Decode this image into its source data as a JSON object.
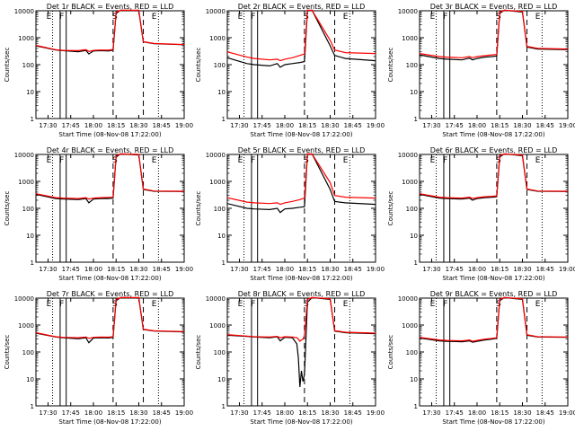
{
  "chart_data": [
    {
      "type": "line",
      "title": "Det 1r BLACK = Events, RED = LLD",
      "xlabel": "Start Time (08-Nov-08 17:22:00)",
      "ylabel": "Counts/sec",
      "xlim_minutes": [
        17.3667,
        18.2
      ],
      "ylim": [
        1,
        10000
      ],
      "yscale": "log",
      "x_ticks": [
        "17:30",
        "17:45",
        "18:00",
        "18:15",
        "18:30",
        "18:45",
        "19:00"
      ],
      "y_ticks": [
        "1",
        "10",
        "100",
        "1000",
        "10000"
      ],
      "markers": [
        "E",
        "F",
        "S",
        "E"
      ],
      "series": [
        {
          "name": "BLACK = Events",
          "color": "#000000",
          "x": [
            "17:22",
            "17:35",
            "17:40",
            "17:50",
            "17:55",
            "17:57",
            "18:00",
            "18:05",
            "18:10",
            "18:13",
            "18:15",
            "18:18",
            "18:30",
            "18:33",
            "18:40",
            "19:00"
          ],
          "y": [
            500,
            350,
            330,
            300,
            340,
            250,
            320,
            330,
            320,
            350,
            8000,
            12000,
            10000,
            700,
            600,
            550
          ]
        },
        {
          "name": "RED = LLD",
          "color": "#ff0000",
          "x": [
            "17:22",
            "17:35",
            "17:40",
            "17:50",
            "17:55",
            "17:57",
            "18:00",
            "18:05",
            "18:10",
            "18:13",
            "18:15",
            "18:18",
            "18:30",
            "18:33",
            "18:40",
            "19:00"
          ],
          "y": [
            520,
            360,
            340,
            330,
            360,
            310,
            340,
            350,
            345,
            370,
            9000,
            12500,
            10500,
            720,
            610,
            560
          ]
        }
      ]
    },
    {
      "type": "line",
      "title": "Det 2r BLACK = Events, RED = LLD",
      "xlabel": "Start Time (08-Nov-08 17:22:00)",
      "ylabel": "Counts/sec",
      "xlim_minutes": [
        17.3667,
        18.2
      ],
      "ylim": [
        1,
        10000
      ],
      "yscale": "log",
      "x_ticks": [
        "17:30",
        "17:45",
        "18:00",
        "18:15",
        "18:30",
        "18:45",
        "19:00"
      ],
      "y_ticks": [
        "1",
        "10",
        "100",
        "1000",
        "10000"
      ],
      "markers": [
        "E",
        "F",
        "S",
        "E"
      ],
      "series": [
        {
          "name": "BLACK = Events",
          "color": "#000000",
          "x": [
            "17:22",
            "17:35",
            "17:40",
            "17:50",
            "17:55",
            "17:57",
            "18:00",
            "18:05",
            "18:10",
            "18:13",
            "18:15",
            "18:18",
            "18:30",
            "18:33",
            "18:40",
            "19:00"
          ],
          "y": [
            180,
            110,
            100,
            90,
            110,
            80,
            100,
            110,
            120,
            130,
            10000,
            12000,
            500,
            220,
            170,
            140
          ]
        },
        {
          "name": "RED = LLD",
          "color": "#ff0000",
          "x": [
            "17:22",
            "17:35",
            "17:40",
            "17:50",
            "17:55",
            "17:57",
            "18:00",
            "18:05",
            "18:10",
            "18:13",
            "18:15",
            "18:18",
            "18:30",
            "18:33",
            "18:40",
            "19:00"
          ],
          "y": [
            300,
            190,
            170,
            150,
            160,
            140,
            160,
            180,
            220,
            250,
            11000,
            12500,
            800,
            350,
            280,
            260
          ]
        }
      ]
    },
    {
      "type": "line",
      "title": "Det 3r BLACK = Events, RED = LLD",
      "xlabel": "Start Time (08-Nov-08 17:22:00)",
      "ylabel": "Counts/sec",
      "xlim_minutes": [
        17.3667,
        18.2
      ],
      "ylim": [
        1,
        10000
      ],
      "yscale": "log",
      "x_ticks": [
        "17:30",
        "17:45",
        "18:00",
        "18:15",
        "18:30",
        "18:45",
        "19:00"
      ],
      "y_ticks": [
        "1",
        "10",
        "100",
        "1000",
        "10000"
      ],
      "markers": [
        "E",
        "F",
        "S",
        "E"
      ],
      "series": [
        {
          "name": "BLACK = Events",
          "color": "#000000",
          "x": [
            "17:22",
            "17:35",
            "17:40",
            "17:50",
            "17:55",
            "17:57",
            "18:00",
            "18:05",
            "18:10",
            "18:13",
            "18:15",
            "18:18",
            "18:30",
            "18:33",
            "18:40",
            "19:00"
          ],
          "y": [
            230,
            170,
            160,
            150,
            175,
            150,
            170,
            190,
            200,
            210,
            8000,
            12000,
            9000,
            450,
            380,
            360
          ]
        },
        {
          "name": "RED = LLD",
          "color": "#ff0000",
          "x": [
            "17:22",
            "17:35",
            "17:40",
            "17:50",
            "17:55",
            "17:57",
            "18:00",
            "18:05",
            "18:10",
            "18:13",
            "18:15",
            "18:18",
            "18:30",
            "18:33",
            "18:40",
            "19:00"
          ],
          "y": [
            260,
            200,
            190,
            180,
            200,
            180,
            200,
            215,
            230,
            240,
            9000,
            12500,
            9500,
            480,
            400,
            380
          ]
        }
      ]
    },
    {
      "type": "line",
      "title": "Det 4r BLACK = Events, RED = LLD",
      "xlabel": "Start Time (08-Nov-08 17:22:00)",
      "ylabel": "Counts/sec",
      "xlim_minutes": [
        17.3667,
        18.2
      ],
      "ylim": [
        1,
        10000
      ],
      "yscale": "log",
      "x_ticks": [
        "17:30",
        "17:45",
        "18:00",
        "18:15",
        "18:30",
        "18:45",
        "19:00"
      ],
      "y_ticks": [
        "1",
        "10",
        "100",
        "1000",
        "10000"
      ],
      "markers": [
        "E",
        "F",
        "S",
        "E"
      ],
      "series": [
        {
          "name": "BLACK = Events",
          "color": "#000000",
          "x": [
            "17:22",
            "17:35",
            "17:40",
            "17:50",
            "17:55",
            "17:57",
            "18:00",
            "18:05",
            "18:10",
            "18:13",
            "18:15",
            "18:18",
            "18:30",
            "18:33",
            "18:40",
            "19:00"
          ],
          "y": [
            330,
            230,
            220,
            210,
            230,
            160,
            220,
            230,
            230,
            240,
            8000,
            12000,
            9500,
            500,
            430,
            420
          ]
        },
        {
          "name": "RED = LLD",
          "color": "#ff0000",
          "x": [
            "17:22",
            "17:35",
            "17:40",
            "17:50",
            "17:55",
            "17:57",
            "18:00",
            "18:05",
            "18:10",
            "18:13",
            "18:15",
            "18:18",
            "18:30",
            "18:33",
            "18:40",
            "19:00"
          ],
          "y": [
            350,
            250,
            240,
            230,
            250,
            220,
            240,
            250,
            255,
            260,
            9000,
            12500,
            10000,
            520,
            440,
            430
          ]
        }
      ]
    },
    {
      "type": "line",
      "title": "Det 5r BLACK = Events, RED = LLD",
      "xlabel": "Start Time (08-Nov-08 17:22:00)",
      "ylabel": "Counts/sec",
      "xlim_minutes": [
        17.3667,
        18.2
      ],
      "ylim": [
        1,
        10000
      ],
      "yscale": "log",
      "x_ticks": [
        "17:30",
        "17:45",
        "18:00",
        "18:15",
        "18:30",
        "18:45",
        "19:00"
      ],
      "y_ticks": [
        "1",
        "10",
        "100",
        "1000",
        "10000"
      ],
      "markers": [
        "E",
        "F",
        "S",
        "E"
      ],
      "series": [
        {
          "name": "BLACK = Events",
          "color": "#000000",
          "x": [
            "17:22",
            "17:35",
            "17:40",
            "17:50",
            "17:55",
            "17:57",
            "18:00",
            "18:05",
            "18:10",
            "18:13",
            "18:15",
            "18:18",
            "18:30",
            "18:33",
            "18:40",
            "19:00"
          ],
          "y": [
            150,
            100,
            95,
            90,
            100,
            70,
            95,
            100,
            110,
            115,
            10000,
            12000,
            500,
            180,
            160,
            140
          ]
        },
        {
          "name": "RED = LLD",
          "color": "#ff0000",
          "x": [
            "17:22",
            "17:35",
            "17:40",
            "17:50",
            "17:55",
            "17:57",
            "18:00",
            "18:05",
            "18:10",
            "18:13",
            "18:15",
            "18:18",
            "18:30",
            "18:33",
            "18:40",
            "19:00"
          ],
          "y": [
            250,
            170,
            160,
            150,
            160,
            140,
            160,
            180,
            210,
            240,
            11000,
            12500,
            900,
            300,
            260,
            240
          ]
        }
      ]
    },
    {
      "type": "line",
      "title": "Det 6r BLACK = Events, RED = LLD",
      "xlabel": "Start Time (08-Nov-08 17:22:00)",
      "ylabel": "Counts/sec",
      "xlim_minutes": [
        17.3667,
        18.2
      ],
      "ylim": [
        1,
        10000
      ],
      "yscale": "log",
      "x_ticks": [
        "17:30",
        "17:45",
        "18:00",
        "18:15",
        "18:30",
        "18:45",
        "19:00"
      ],
      "y_ticks": [
        "1",
        "10",
        "100",
        "1000",
        "10000"
      ],
      "markers": [
        "E",
        "F",
        "S",
        "E"
      ],
      "series": [
        {
          "name": "BLACK = Events",
          "color": "#000000",
          "x": [
            "17:22",
            "17:35",
            "17:40",
            "17:50",
            "17:55",
            "17:57",
            "18:00",
            "18:05",
            "18:10",
            "18:13",
            "18:15",
            "18:18",
            "18:30",
            "18:33",
            "18:40",
            "19:00"
          ],
          "y": [
            330,
            240,
            230,
            220,
            240,
            200,
            230,
            250,
            260,
            270,
            8000,
            12000,
            9000,
            500,
            430,
            420
          ]
        },
        {
          "name": "RED = LLD",
          "color": "#ff0000",
          "x": [
            "17:22",
            "17:35",
            "17:40",
            "17:50",
            "17:55",
            "17:57",
            "18:00",
            "18:05",
            "18:10",
            "18:13",
            "18:15",
            "18:18",
            "18:30",
            "18:33",
            "18:40",
            "19:00"
          ],
          "y": [
            350,
            260,
            250,
            240,
            260,
            230,
            250,
            270,
            280,
            290,
            9000,
            12500,
            9500,
            520,
            440,
            430
          ]
        }
      ]
    },
    {
      "type": "line",
      "title": "Det 7r BLACK = Events, RED = LLD",
      "xlabel": "Start Time (08-Nov-08 17:22:00)",
      "ylabel": "Counts/sec",
      "xlim_minutes": [
        17.3667,
        18.2
      ],
      "ylim": [
        1,
        10000
      ],
      "yscale": "log",
      "x_ticks": [
        "17:30",
        "17:45",
        "18:00",
        "18:15",
        "18:30",
        "18:45",
        "19:00"
      ],
      "y_ticks": [
        "1",
        "10",
        "100",
        "1000",
        "10000"
      ],
      "markers": [
        "E",
        "F",
        "S",
        "E"
      ],
      "series": [
        {
          "name": "BLACK = Events",
          "color": "#000000",
          "x": [
            "17:22",
            "17:35",
            "17:40",
            "17:50",
            "17:55",
            "17:57",
            "18:00",
            "18:05",
            "18:10",
            "18:13",
            "18:15",
            "18:18",
            "18:30",
            "18:33",
            "18:40",
            "19:00"
          ],
          "y": [
            500,
            360,
            340,
            310,
            340,
            220,
            330,
            340,
            330,
            350,
            8000,
            12000,
            10000,
            680,
            600,
            560
          ]
        },
        {
          "name": "RED = LLD",
          "color": "#ff0000",
          "x": [
            "17:22",
            "17:35",
            "17:40",
            "17:50",
            "17:55",
            "17:57",
            "18:00",
            "18:05",
            "18:10",
            "18:13",
            "18:15",
            "18:18",
            "18:30",
            "18:33",
            "18:40",
            "19:00"
          ],
          "y": [
            520,
            370,
            350,
            340,
            360,
            320,
            350,
            360,
            355,
            370,
            9000,
            12500,
            10500,
            700,
            610,
            570
          ]
        }
      ]
    },
    {
      "type": "line",
      "title": "Det 8r BLACK = Events, RED = LLD",
      "xlabel": "Start Time (08-Nov-08 17:22:00)",
      "ylabel": "Counts/sec",
      "xlim_minutes": [
        17.3667,
        18.2
      ],
      "ylim": [
        1,
        10000
      ],
      "yscale": "log",
      "x_ticks": [
        "17:30",
        "17:45",
        "18:00",
        "18:15",
        "18:30",
        "18:45",
        "19:00"
      ],
      "y_ticks": [
        "1",
        "10",
        "100",
        "1000",
        "10000"
      ],
      "markers": [
        "E",
        "F",
        "S",
        "E"
      ],
      "series": [
        {
          "name": "BLACK = Events",
          "color": "#000000",
          "x": [
            "17:22",
            "17:35",
            "17:40",
            "17:50",
            "17:55",
            "17:57",
            "18:00",
            "18:05",
            "18:08",
            "18:09",
            "18:10",
            "18:11",
            "18:12",
            "18:13",
            "18:15",
            "18:18",
            "18:30",
            "18:33",
            "18:40",
            "19:00"
          ],
          "y": [
            420,
            380,
            360,
            340,
            370,
            260,
            350,
            340,
            200,
            60,
            5,
            20,
            8,
            15,
            7000,
            11000,
            9000,
            600,
            520,
            480
          ]
        },
        {
          "name": "RED = LLD",
          "color": "#ff0000",
          "x": [
            "17:22",
            "17:35",
            "17:40",
            "17:50",
            "17:55",
            "17:57",
            "18:00",
            "18:05",
            "18:08",
            "18:09",
            "18:10",
            "18:11",
            "18:12",
            "18:13",
            "18:15",
            "18:18",
            "18:30",
            "18:33",
            "18:40",
            "19:00"
          ],
          "y": [
            440,
            390,
            370,
            360,
            380,
            340,
            370,
            360,
            340,
            300,
            250,
            280,
            300,
            400,
            9000,
            12500,
            9500,
            620,
            540,
            500
          ]
        }
      ]
    },
    {
      "type": "line",
      "title": "Det 9r BLACK = Events, RED = LLD",
      "xlabel": "Start Time (08-Nov-08 17:22:00)",
      "ylabel": "Counts/sec",
      "xlim_minutes": [
        17.3667,
        18.2
      ],
      "ylim": [
        1,
        10000
      ],
      "yscale": "log",
      "x_ticks": [
        "17:30",
        "17:45",
        "18:00",
        "18:15",
        "18:30",
        "18:45",
        "19:00"
      ],
      "y_ticks": [
        "1",
        "10",
        "100",
        "1000",
        "10000"
      ],
      "markers": [
        "E",
        "F",
        "S",
        "E"
      ],
      "series": [
        {
          "name": "BLACK = Events",
          "color": "#000000",
          "x": [
            "17:22",
            "17:35",
            "17:40",
            "17:50",
            "17:55",
            "17:57",
            "18:00",
            "18:05",
            "18:10",
            "18:13",
            "18:15",
            "18:18",
            "18:30",
            "18:33",
            "18:40",
            "19:00"
          ],
          "y": [
            330,
            260,
            250,
            240,
            260,
            230,
            250,
            280,
            300,
            320,
            8000,
            12000,
            9000,
            420,
            360,
            350
          ]
        },
        {
          "name": "RED = LLD",
          "color": "#ff0000",
          "x": [
            "17:22",
            "17:35",
            "17:40",
            "17:50",
            "17:55",
            "17:57",
            "18:00",
            "18:05",
            "18:10",
            "18:13",
            "18:15",
            "18:18",
            "18:30",
            "18:33",
            "18:40",
            "19:00"
          ],
          "y": [
            350,
            280,
            270,
            260,
            280,
            250,
            270,
            300,
            320,
            340,
            9000,
            12500,
            9500,
            440,
            370,
            360
          ]
        }
      ]
    }
  ]
}
